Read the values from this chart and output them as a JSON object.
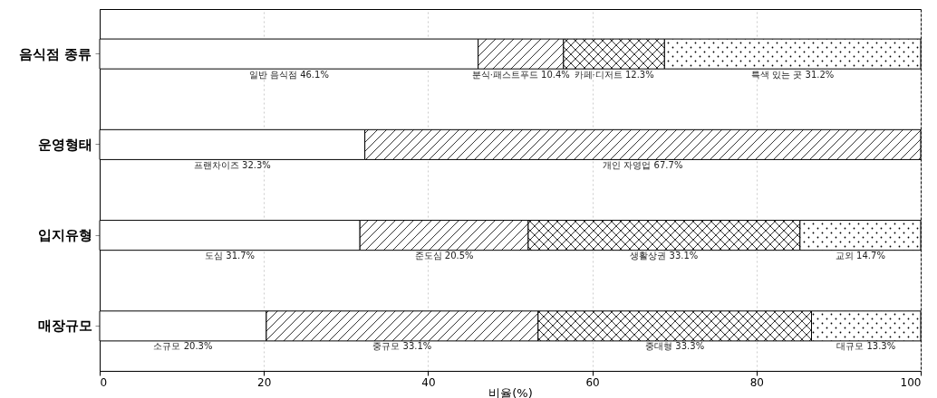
{
  "chart_data": {
    "type": "bar",
    "orientation": "horizontal",
    "stacked": true,
    "xlabel": "비율(%)",
    "categories": [
      "음식점 종류",
      "운영형태",
      "입지유형",
      "매장규모"
    ],
    "series": [
      {
        "color": "#ffffff",
        "values": [
          46.1,
          32.3,
          31.7,
          20.3
        ],
        "value_labels": [
          "일반 음식점 46.1%",
          "프랜차이즈 32.3%",
          "도심 31.7%",
          "소규모 20.3%"
        ]
      },
      {
        "color": "#000000",
        "values": [
          10.4,
          67.7,
          20.5,
          33.1
        ],
        "value_labels": [
          "분식·패스트푸드 10.4%",
          "개인 자영업 67.7%",
          "준도심 20.5%",
          "중규모 33.1%"
        ]
      },
      {
        "color": "#000000",
        "values": [
          12.3,
          null,
          33.1,
          33.3
        ],
        "value_labels": [
          "카페·디저트 12.3%",
          null,
          "생활상권 33.1%",
          "중대형 33.3%"
        ]
      },
      {
        "color": "#000000",
        "values": [
          31.2,
          null,
          14.7,
          13.3
        ],
        "value_labels": [
          "특색 있는 곳 31.2%",
          null,
          "교외 14.7%",
          "대규모 13.3%"
        ]
      }
    ],
    "xlim": [
      0,
      100
    ],
    "xticks": [
      0,
      20,
      40,
      60,
      80,
      100
    ],
    "grid": "x"
  }
}
